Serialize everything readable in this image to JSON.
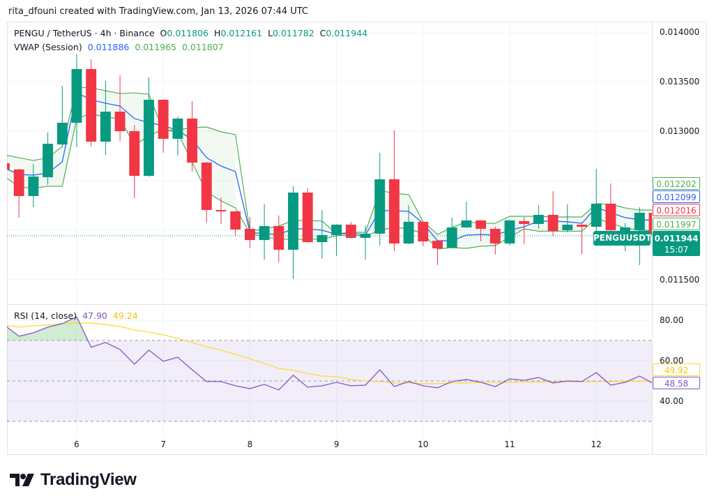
{
  "credit": "rita_dfouni created with TradingView.com, Jan 13, 2026 07:44 UTC",
  "legend": {
    "symbol": "PENGU / TetherUS · 4h · Binance",
    "o_label": "O",
    "o": "0.011806",
    "h_label": "H",
    "h": "0.012161",
    "l_label": "L",
    "l": "0.011782",
    "c_label": "C",
    "c": "0.011944",
    "vwap_title": "VWAP (Session)",
    "vwap_mid": "0.011886",
    "vwap_upper": "0.011965",
    "vwap_lower": "0.011807",
    "rsi_title": "RSI (14, close)",
    "rsi_value": "47.90",
    "rsi_ma": "49.24"
  },
  "colors": {
    "up": "#089981",
    "down": "#f23645",
    "vwap": "#2962ff",
    "band": "#4caf50",
    "rsi": "#7e57c2",
    "rsi_ma": "#fdd835"
  },
  "price_axis": {
    "ticks": [
      "0.014000",
      "0.013500",
      "0.013000",
      "0.011500"
    ]
  },
  "rsi_axis": {
    "ticks": [
      "80.00",
      "60.00",
      "40.00"
    ],
    "bands": [
      70,
      50,
      30
    ]
  },
  "x_axis": {
    "ticks": [
      "6",
      "7",
      "8",
      "9",
      "10",
      "11",
      "12"
    ]
  },
  "price_labels": {
    "vwap_upper": "0.012202",
    "vwap_mid": "0.012099",
    "last_red": "0.012016",
    "vwap_lower": "0.011997",
    "last_price": "0.011944",
    "countdown": "15:07",
    "symbol_tag": "PENGUUSDT",
    "rsi_ma": "49.92",
    "rsi": "48.58"
  },
  "chart_data": {
    "type": "candlestick",
    "ylim": [
      0.0114,
      0.01416
    ],
    "first_day_candle_index": 5,
    "candles_per_day": 6,
    "ohlc": [
      [
        0.012676,
        0.012718,
        0.012563,
        0.012613
      ],
      [
        0.012613,
        0.01262,
        0.012127,
        0.012345
      ],
      [
        0.012345,
        0.012669,
        0.012232,
        0.012542
      ],
      [
        0.012535,
        0.012986,
        0.012458,
        0.012873
      ],
      [
        0.012866,
        0.013458,
        0.012859,
        0.013085
      ],
      [
        0.013085,
        0.013775,
        0.012838,
        0.013627
      ],
      [
        0.013627,
        0.013725,
        0.012845,
        0.012894
      ],
      [
        0.012894,
        0.013507,
        0.012761,
        0.013197
      ],
      [
        0.013197,
        0.013563,
        0.012901,
        0.013
      ],
      [
        0.013,
        0.013063,
        0.012324,
        0.012549
      ],
      [
        0.012549,
        0.013542,
        0.01254,
        0.013317
      ],
      [
        0.013317,
        0.01332,
        0.012782,
        0.012923
      ],
      [
        0.012923,
        0.013148,
        0.012754,
        0.013127
      ],
      [
        0.013127,
        0.013303,
        0.012592,
        0.012683
      ],
      [
        0.012683,
        0.01269,
        0.012078,
        0.012204
      ],
      [
        0.012204,
        0.012331,
        0.012063,
        0.01219
      ],
      [
        0.01219,
        0.012195,
        0.011944,
        0.012007
      ],
      [
        0.012014,
        0.012134,
        0.011817,
        0.011901
      ],
      [
        0.011901,
        0.012261,
        0.011704,
        0.012042
      ],
      [
        0.012042,
        0.012148,
        0.011676,
        0.011803
      ],
      [
        0.011803,
        0.012444,
        0.011507,
        0.01238
      ],
      [
        0.01238,
        0.012423,
        0.011873,
        0.01188
      ],
      [
        0.01188,
        0.012204,
        0.011711,
        0.011951
      ],
      [
        0.011951,
        0.01206,
        0.011739,
        0.012056
      ],
      [
        0.012056,
        0.012085,
        0.011916,
        0.011923
      ],
      [
        0.011923,
        0.012049,
        0.011704,
        0.011965
      ],
      [
        0.011965,
        0.012782,
        0.011845,
        0.012514
      ],
      [
        0.012514,
        0.013007,
        0.011789,
        0.011866
      ],
      [
        0.011866,
        0.012254,
        0.011859,
        0.012085
      ],
      [
        0.012085,
        0.01209,
        0.011838,
        0.011887
      ],
      [
        0.011894,
        0.0119,
        0.011648,
        0.011817
      ],
      [
        0.011824,
        0.012127,
        0.01182,
        0.012028
      ],
      [
        0.012028,
        0.012289,
        0.012025,
        0.012099
      ],
      [
        0.012099,
        0.012102,
        0.011887,
        0.012014
      ],
      [
        0.012014,
        0.012035,
        0.011754,
        0.011866
      ],
      [
        0.011866,
        0.012106,
        0.011845,
        0.012099
      ],
      [
        0.012092,
        0.012134,
        0.011859,
        0.012063
      ],
      [
        0.012063,
        0.012254,
        0.012014,
        0.012155
      ],
      [
        0.012155,
        0.012394,
        0.011937,
        0.011993
      ],
      [
        0.012,
        0.012261,
        0.011979,
        0.012056
      ],
      [
        0.012056,
        0.01206,
        0.011761,
        0.012035
      ],
      [
        0.012035,
        0.01262,
        0.011979,
        0.012268
      ],
      [
        0.012268,
        0.012472,
        0.01193,
        0.012
      ],
      [
        0.011979,
        0.012071,
        0.011789,
        0.012028
      ],
      [
        0.012,
        0.012232,
        0.011648,
        0.012176
      ],
      [
        0.012176,
        0.012211,
        0.01194,
        0.011944
      ]
    ],
    "vwap_mid": [
      0.012627,
      0.012563,
      0.012556,
      0.012578,
      0.01269,
      0.013387,
      0.013317,
      0.013282,
      0.013254,
      0.013127,
      0.013085,
      0.013056,
      0.013007,
      0.012916,
      0.012732,
      0.012648,
      0.012592,
      0.011979,
      0.011965,
      0.011958,
      0.012014,
      0.012014,
      0.012,
      0.011958,
      0.011972,
      0.011951,
      0.012197,
      0.012197,
      0.01219,
      0.01207,
      0.011894,
      0.011894,
      0.011951,
      0.011958,
      0.011951,
      0.012,
      0.012035,
      0.012092,
      0.012092,
      0.012085,
      0.01207,
      0.012232,
      0.012176,
      0.012127,
      0.012106,
      0.012099
    ],
    "vwap_upper": [
      0.012761,
      0.012732,
      0.012704,
      0.012732,
      0.012845,
      0.013444,
      0.013437,
      0.013408,
      0.01338,
      0.013387,
      0.013373,
      0.013007,
      0.013014,
      0.013035,
      0.013042,
      0.012993,
      0.012965,
      0.01199,
      0.012014,
      0.012042,
      0.012099,
      0.012099,
      0.012092,
      0.011965,
      0.011979,
      0.011979,
      0.012401,
      0.012373,
      0.012359,
      0.012085,
      0.011958,
      0.012028,
      0.012085,
      0.01207,
      0.01207,
      0.012141,
      0.012141,
      0.012141,
      0.012134,
      0.012134,
      0.012134,
      0.012268,
      0.012261,
      0.012225,
      0.012204,
      0.012202
    ],
    "vwap_lower": [
      0.012542,
      0.012437,
      0.012423,
      0.012444,
      0.012444,
      0.013127,
      0.013176,
      0.013141,
      0.013127,
      0.012859,
      0.012951,
      0.013021,
      0.012986,
      0.012683,
      0.012387,
      0.012296,
      0.012225,
      0.01197,
      0.01193,
      0.011909,
      0.011909,
      0.011909,
      0.011909,
      0.011944,
      0.011951,
      0.01194,
      0.012,
      0.012028,
      0.012014,
      0.011965,
      0.01181,
      0.011824,
      0.011817,
      0.011838,
      0.011845,
      0.01193,
      0.012014,
      0.01199,
      0.01199,
      0.01199,
      0.01199,
      0.01212,
      0.01207,
      0.012021,
      0.012,
      0.011997
    ],
    "rsi": [
      77.6,
      72.1,
      73.8,
      76.6,
      78.3,
      81.7,
      66.6,
      69.0,
      65.5,
      58.3,
      65.2,
      59.7,
      61.7,
      55.5,
      49.7,
      49.7,
      47.6,
      46.2,
      48.3,
      45.5,
      52.8,
      46.9,
      47.6,
      49.3,
      47.6,
      47.9,
      55.5,
      47.2,
      49.7,
      47.6,
      46.6,
      49.7,
      50.7,
      49.3,
      47.2,
      51.0,
      50.3,
      51.7,
      49.0,
      50.0,
      49.7,
      54.1,
      47.9,
      49.3,
      52.4,
      48.58
    ],
    "rsi_ma": [
      77.6,
      76.6,
      77.2,
      77.6,
      78.3,
      78.6,
      78.6,
      77.9,
      76.9,
      75.2,
      74.1,
      72.8,
      71.0,
      69.0,
      66.9,
      65.2,
      63.1,
      61.0,
      58.6,
      56.2,
      55.2,
      53.8,
      52.4,
      52.1,
      50.7,
      50.0,
      49.7,
      49.0,
      49.0,
      48.6,
      48.6,
      49.0,
      49.0,
      49.2,
      49.3,
      49.3,
      49.4,
      49.5,
      49.5,
      49.6,
      49.6,
      49.7,
      49.7,
      49.8,
      49.9,
      49.92
    ],
    "rsi_ylim": [
      25,
      86
    ]
  },
  "footer": {
    "brand": "TradingView"
  }
}
